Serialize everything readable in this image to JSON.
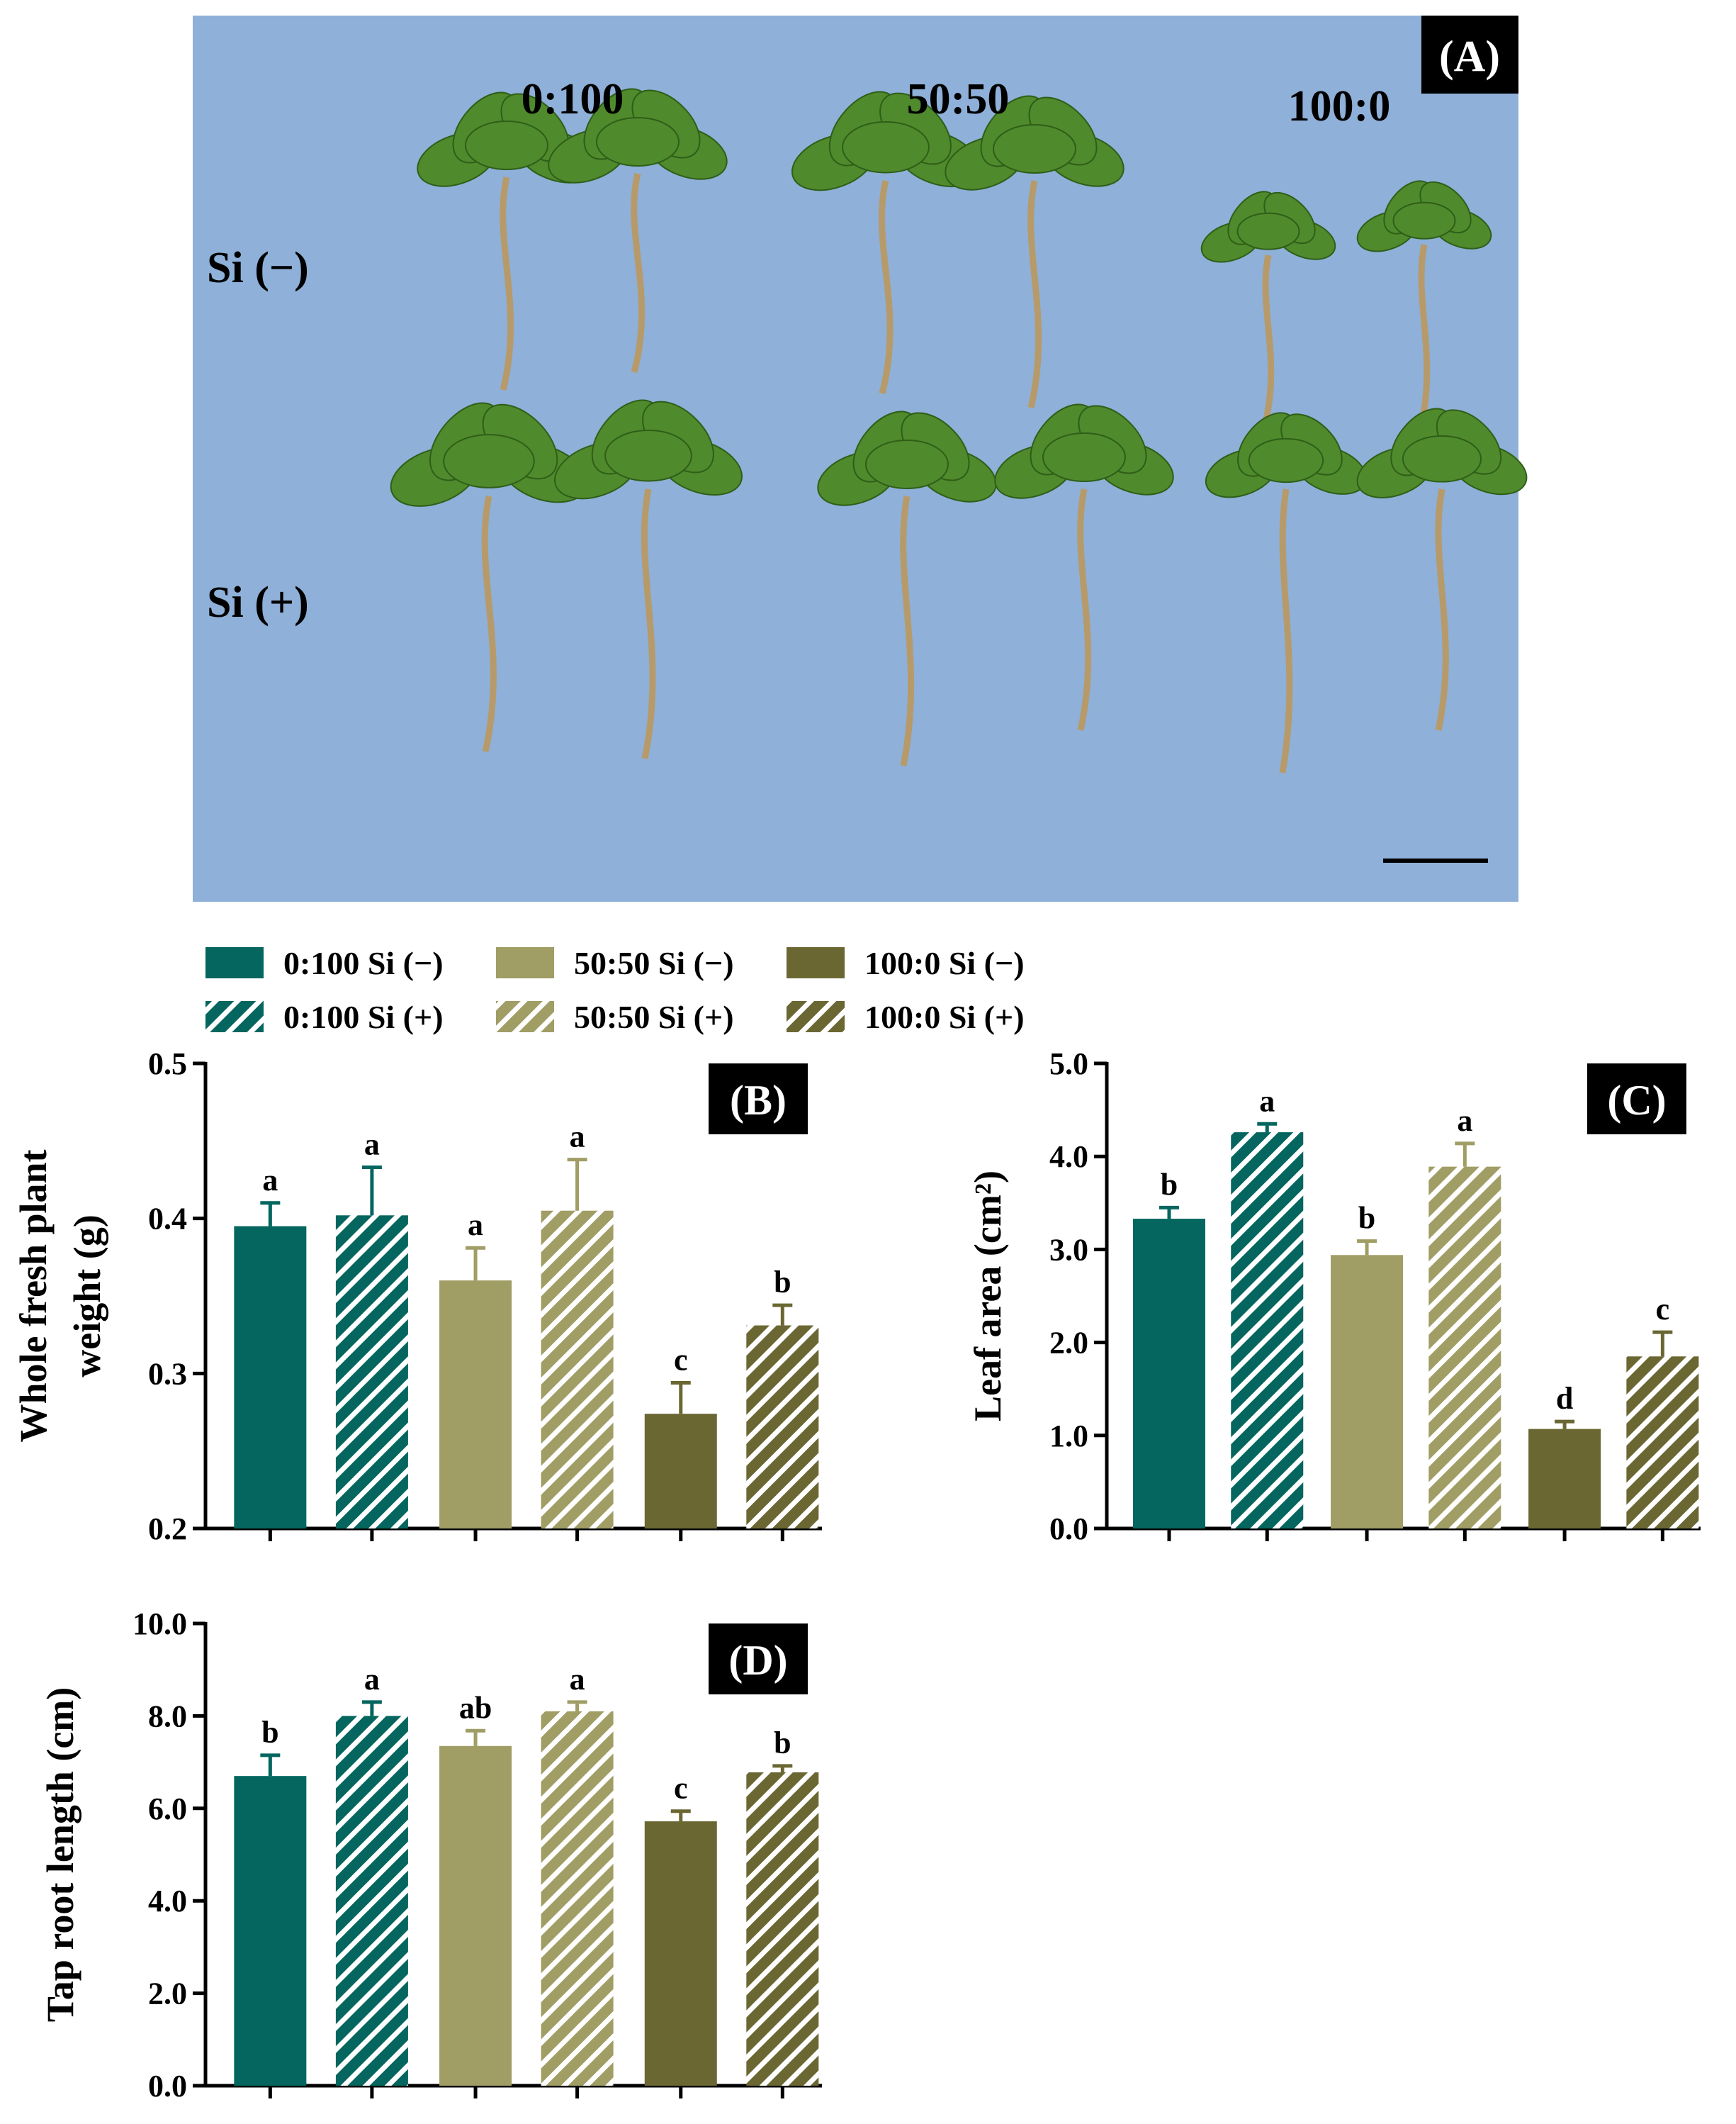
{
  "photo": {
    "panel_label": "(A)",
    "columns": [
      "0:100",
      "50:50",
      "100:0"
    ],
    "rows": [
      "Si (−)",
      "Si (+)"
    ],
    "background_color": "#8fb0d8"
  },
  "legend": [
    {
      "label": "0:100 Si (−)",
      "color": "#04665e",
      "hatch": false
    },
    {
      "label": "50:50 Si (−)",
      "color": "#a09d65",
      "hatch": false
    },
    {
      "label": "100:0 Si (−)",
      "color": "#6b6733",
      "hatch": false
    },
    {
      "label": "0:100 Si (+)",
      "color": "#04665e",
      "hatch": true
    },
    {
      "label": "50:50 Si (+)",
      "color": "#a09d65",
      "hatch": true
    },
    {
      "label": "100:0 Si (+)",
      "color": "#6b6733",
      "hatch": true
    }
  ],
  "chart_data": [
    {
      "type": "bar",
      "panel_label": "(B)",
      "ylabel_lines": [
        "Whole fresh plant",
        "weight (g)"
      ],
      "ylim": [
        0.2,
        0.5
      ],
      "yticks": [
        0.2,
        0.3,
        0.4,
        0.5
      ],
      "tick_labels": [
        "0.2",
        "0.3",
        "0.4",
        "0.5"
      ],
      "series": [
        "0:100 Si (−)",
        "0:100 Si (+)",
        "50:50 Si (−)",
        "50:50 Si (+)",
        "100:0 Si (−)",
        "100:0 Si (+)"
      ],
      "values": [
        0.395,
        0.402,
        0.36,
        0.405,
        0.274,
        0.331
      ],
      "errors": [
        0.015,
        0.031,
        0.021,
        0.033,
        0.02,
        0.013
      ],
      "letters": [
        "a",
        "a",
        "a",
        "a",
        "c",
        "b"
      ]
    },
    {
      "type": "bar",
      "panel_label": "(C)",
      "ylabel_lines": [
        "Leaf area (cm²)"
      ],
      "ylim": [
        0.0,
        5.0
      ],
      "yticks": [
        0.0,
        1.0,
        2.0,
        3.0,
        4.0,
        5.0
      ],
      "tick_labels": [
        "0.0",
        "1.0",
        "2.0",
        "3.0",
        "4.0",
        "5.0"
      ],
      "series": [
        "0:100 Si (−)",
        "0:100 Si (+)",
        "50:50 Si (−)",
        "50:50 Si (+)",
        "100:0 Si (−)",
        "100:0 Si (+)"
      ],
      "values": [
        3.33,
        4.26,
        2.94,
        3.89,
        1.07,
        1.85
      ],
      "errors": [
        0.12,
        0.09,
        0.15,
        0.25,
        0.08,
        0.26
      ],
      "letters": [
        "b",
        "a",
        "b",
        "a",
        "d",
        "c"
      ]
    },
    {
      "type": "bar",
      "panel_label": "(D)",
      "ylabel_lines": [
        "Tap root length (cm)"
      ],
      "ylim": [
        0.0,
        10.0
      ],
      "yticks": [
        0.0,
        2.0,
        4.0,
        6.0,
        8.0,
        10.0
      ],
      "tick_labels": [
        "0.0",
        "2.0",
        "4.0",
        "6.0",
        "8.0",
        "10.0"
      ],
      "series": [
        "0:100 Si (−)",
        "0:100 Si (+)",
        "50:50 Si (−)",
        "50:50 Si (+)",
        "100:0 Si (−)",
        "100:0 Si (+)"
      ],
      "values": [
        6.7,
        8.0,
        7.35,
        8.1,
        5.72,
        6.78
      ],
      "errors": [
        0.45,
        0.3,
        0.33,
        0.2,
        0.22,
        0.14
      ],
      "letters": [
        "b",
        "a",
        "ab",
        "a",
        "c",
        "b"
      ]
    }
  ]
}
